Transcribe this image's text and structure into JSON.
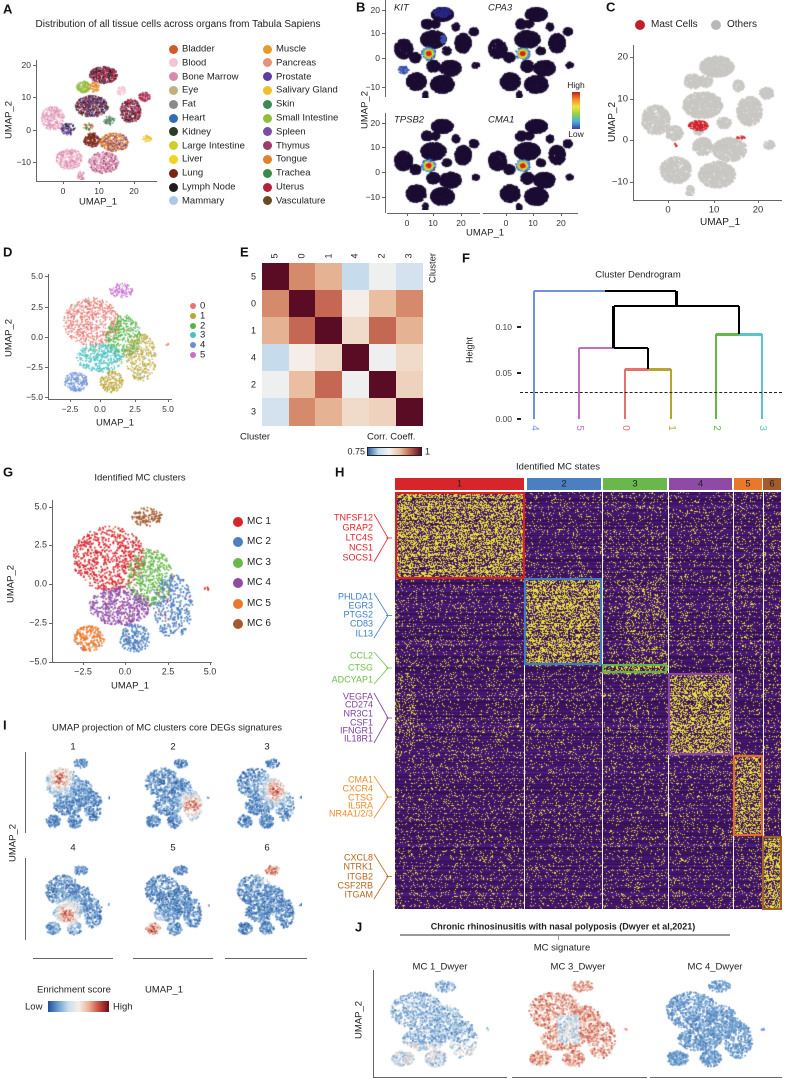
{
  "panels": {
    "A": {
      "label": "A",
      "title": "Distribution of all tissue cells across organs from Tabula Sapiens",
      "xlabel": "UMAP_1",
      "ylabel": "UMAP_2",
      "xticks": [
        "0",
        "10",
        "20"
      ],
      "yticks": [
        "20",
        "10",
        "0",
        "−10"
      ],
      "legend": [
        {
          "name": "Bladder",
          "color": "#d5572a"
        },
        {
          "name": "Blood",
          "color": "#f2c4d4"
        },
        {
          "name": "Bone Marrow",
          "color": "#d988ae"
        },
        {
          "name": "Eye",
          "color": "#c2b07e"
        },
        {
          "name": "Fat",
          "color": "#8a8a8a"
        },
        {
          "name": "Heart",
          "color": "#2f6db5"
        },
        {
          "name": "Kidney",
          "color": "#2b3d23"
        },
        {
          "name": "Large Intestine",
          "color": "#cfcf2a"
        },
        {
          "name": "Liver",
          "color": "#f4d21f"
        },
        {
          "name": "Lung",
          "color": "#7a2413"
        },
        {
          "name": "Lymph Node",
          "color": "#1e1e1e"
        },
        {
          "name": "Mammary",
          "color": "#a9c9ec"
        },
        {
          "name": "Muscle",
          "color": "#e59b28"
        },
        {
          "name": "Pancreas",
          "color": "#e8907a"
        },
        {
          "name": "Prostate",
          "color": "#5b3f9e"
        },
        {
          "name": "Salivary Gland",
          "color": "#ecc12b"
        },
        {
          "name": "Skin",
          "color": "#3b8a55"
        },
        {
          "name": "Small Intestine",
          "color": "#93bd3d"
        },
        {
          "name": "Spleen",
          "color": "#7a4ca0"
        },
        {
          "name": "Thymus",
          "color": "#9c3c6c"
        },
        {
          "name": "Tongue",
          "color": "#e0822a"
        },
        {
          "name": "Trachea",
          "color": "#3b8a4a"
        },
        {
          "name": "Uterus",
          "color": "#b8203a"
        },
        {
          "name": "Vasculature",
          "color": "#6b4a23"
        }
      ]
    },
    "B": {
      "label": "B",
      "genes": [
        "KIT",
        "CPA3",
        "TPSB2",
        "CMA1"
      ],
      "xlabel": "UMAP_1",
      "ylabel": "UMAP_2",
      "xticks": [
        "0",
        "10",
        "20"
      ],
      "yticks": [
        "20",
        "10",
        "0",
        "−10"
      ],
      "colorbar": {
        "high": "High",
        "low": "Low"
      }
    },
    "C": {
      "label": "C",
      "legend": [
        {
          "name": "Mast Cells",
          "color": "#c0202e"
        },
        {
          "name": "Others",
          "color": "#b9b8b8"
        }
      ],
      "xlabel": "UMAP_1",
      "ylabel": "UMAP_2",
      "xticks": [
        "0",
        "10",
        "20"
      ],
      "yticks": [
        "20",
        "10",
        "0",
        "−10"
      ]
    },
    "D": {
      "label": "D",
      "xlabel": "UMAP_1",
      "ylabel": "UMAP_2",
      "xticks": [
        "−2.5",
        "0.0",
        "2.5",
        "5.0"
      ],
      "yticks": [
        "5.0",
        "2.5",
        "0.0",
        "−2.5",
        "−5.0"
      ],
      "clusters": [
        {
          "name": "0",
          "color": "#e8746b"
        },
        {
          "name": "1",
          "color": "#b9a432"
        },
        {
          "name": "2",
          "color": "#56b447"
        },
        {
          "name": "3",
          "color": "#49c1c1"
        },
        {
          "name": "4",
          "color": "#6b8fd6"
        },
        {
          "name": "5",
          "color": "#c96dd0"
        }
      ]
    },
    "E": {
      "label": "E",
      "order": [
        "5",
        "0",
        "1",
        "4",
        "2",
        "3"
      ],
      "matrix": [
        [
          1.0,
          0.93,
          0.9,
          0.8,
          0.83,
          0.81
        ],
        [
          0.93,
          1.0,
          0.95,
          0.84,
          0.89,
          0.93
        ],
        [
          0.9,
          0.95,
          1.0,
          0.86,
          0.95,
          0.9
        ],
        [
          0.8,
          0.84,
          0.86,
          1.0,
          0.83,
          0.86
        ],
        [
          0.83,
          0.89,
          0.95,
          0.83,
          1.0,
          0.87
        ],
        [
          0.81,
          0.93,
          0.9,
          0.86,
          0.87,
          1.0
        ]
      ],
      "row_title": "Cluster",
      "col_title": "Cluster",
      "colorbar_title": "Corr. Coeff.",
      "colorbar_min": "0.75",
      "colorbar_max": "1"
    },
    "F": {
      "label": "F",
      "title": "Cluster Dendrogram",
      "ylabel": "Height",
      "yticks": [
        "0.10",
        "0.05",
        "0.00"
      ],
      "leaves": [
        {
          "name": "4",
          "color": "#6f92d8"
        },
        {
          "name": "5",
          "color": "#c46cc0"
        },
        {
          "name": "0",
          "color": "#e8706a"
        },
        {
          "name": "1",
          "color": "#b9a432"
        },
        {
          "name": "2",
          "color": "#62b94a"
        },
        {
          "name": "3",
          "color": "#5cc3c8"
        }
      ],
      "merge_heights": {
        "0_1": 0.054,
        "5_01": 0.077,
        "2_3": 0.092,
        "501_23": 0.123,
        "root": 0.139
      },
      "cut_height": 0.029
    },
    "G": {
      "label": "G",
      "title": "Identified MC clusters",
      "xlabel": "UMAP_1",
      "ylabel": "UMAP_2",
      "xticks": [
        "−2.5",
        "0.0",
        "2.5",
        "5.0"
      ],
      "yticks": [
        "5.0",
        "2.5",
        "0.0",
        "−2.5",
        "−5.0"
      ],
      "clusters": [
        {
          "name": "MC 1",
          "color": "#d7262b"
        },
        {
          "name": "MC 2",
          "color": "#4b7fc0"
        },
        {
          "name": "MC 3",
          "color": "#6ab84c"
        },
        {
          "name": "MC 4",
          "color": "#8f4aa6"
        },
        {
          "name": "MC 5",
          "color": "#e9792a"
        },
        {
          "name": "MC 6",
          "color": "#a25b2e"
        }
      ]
    },
    "H": {
      "label": "H",
      "title": "Identified MC states",
      "states": [
        {
          "name": "1",
          "color": "#d7262b"
        },
        {
          "name": "2",
          "color": "#4b7fc0"
        },
        {
          "name": "3",
          "color": "#6ab84c"
        },
        {
          "name": "4",
          "color": "#8f4aa6"
        },
        {
          "name": "5",
          "color": "#e9792a"
        },
        {
          "name": "6",
          "color": "#a25b2e"
        }
      ],
      "gene_groups": [
        {
          "color": "#e8202a",
          "genes": [
            "TNFSF12",
            "GRAP2",
            "LTC4S",
            "NCS1",
            "SOCS1"
          ]
        },
        {
          "color": "#3d7cc9",
          "genes": [
            "PHLDA1",
            "EGR3",
            "PTGS2",
            "CD83",
            "IL13"
          ]
        },
        {
          "color": "#6cc04a",
          "genes": [
            "CCL2",
            "CTSG",
            "ADCYAP1"
          ]
        },
        {
          "color": "#7b3fa0",
          "genes": [
            "VEGFA",
            "CD274",
            "NR3C1",
            "CSF1",
            "IFNGR1",
            "IL18R1"
          ]
        },
        {
          "color": "#f08a24",
          "genes": [
            "CMA1",
            "CXCR4",
            "CTSG",
            "IL5RA",
            "NR4A1/2/3"
          ]
        },
        {
          "color": "#b5651d",
          "genes": [
            "CXCL8",
            "NTRK1",
            "ITGB2",
            "CSF2RB",
            "ITGAM"
          ]
        }
      ]
    },
    "I": {
      "label": "I",
      "title": "UMAP projection of MC clusters core DEGs signatures",
      "panels": [
        "1",
        "2",
        "3",
        "4",
        "5",
        "6"
      ],
      "xlabel": "UMAP_1",
      "ylabel": "UMAP_2",
      "legend_title": "Enrichment score",
      "low": "Low",
      "high": "High"
    },
    "J": {
      "label": "J",
      "title": "Chronic rhinosinusitis with nasal polyposis (Dwyer et al,2021)",
      "subtitle": "MC signature",
      "panels": [
        "MC 1_Dwyer",
        "MC 3_Dwyer",
        "MC 4_Dwyer"
      ],
      "ylabel": "UMAP_2"
    }
  }
}
